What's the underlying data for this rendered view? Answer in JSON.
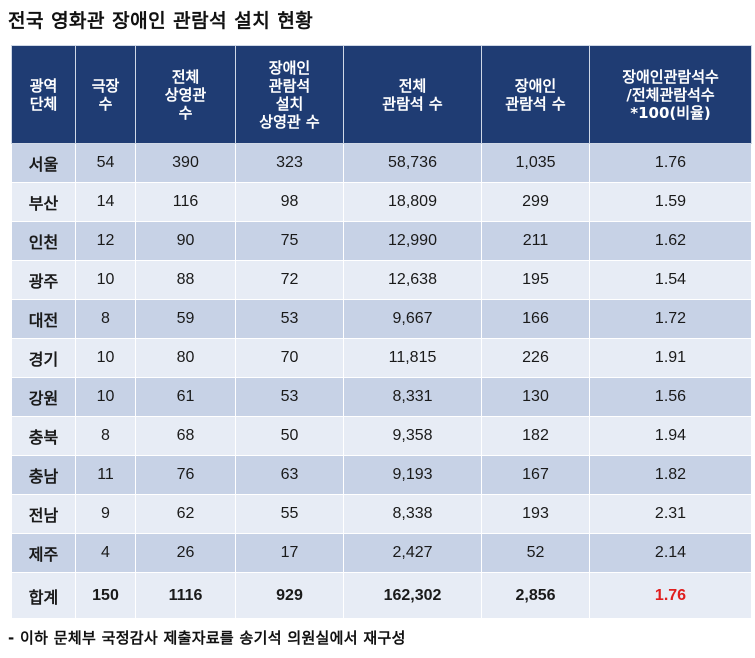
{
  "title": "전국 영화관 장애인 관람석 설치 현황",
  "headers": [
    "광역\n단체",
    "극장\n수",
    "전체\n상영관\n수",
    "장애인\n관람석\n설치\n상영관 수",
    "전체\n관람석 수",
    "장애인\n관람석 수",
    "장애인관람석수\n/전체관람석수\n*100(비율)"
  ],
  "rows": [
    [
      "서울",
      "54",
      "390",
      "323",
      "58,736",
      "1,035",
      "1.76"
    ],
    [
      "부산",
      "14",
      "116",
      "98",
      "18,809",
      "299",
      "1.59"
    ],
    [
      "인천",
      "12",
      "90",
      "75",
      "12,990",
      "211",
      "1.62"
    ],
    [
      "광주",
      "10",
      "88",
      "72",
      "12,638",
      "195",
      "1.54"
    ],
    [
      "대전",
      "8",
      "59",
      "53",
      "9,667",
      "166",
      "1.72"
    ],
    [
      "경기",
      "10",
      "80",
      "70",
      "11,815",
      "226",
      "1.91"
    ],
    [
      "강원",
      "10",
      "61",
      "53",
      "8,331",
      "130",
      "1.56"
    ],
    [
      "충북",
      "8",
      "68",
      "50",
      "9,358",
      "182",
      "1.94"
    ],
    [
      "충남",
      "11",
      "76",
      "63",
      "9,193",
      "167",
      "1.82"
    ],
    [
      "전남",
      "9",
      "62",
      "55",
      "8,338",
      "193",
      "2.31"
    ],
    [
      "제주",
      "4",
      "26",
      "17",
      "2,427",
      "52",
      "2.14"
    ]
  ],
  "total": [
    "합계",
    "150",
    "1116",
    "929",
    "162,302",
    "2,856",
    "1.76"
  ],
  "footnote": "- 이하 문체부 국정감사 제출자료를 송기석 의원실에서 재구성",
  "colors": {
    "header_bg": "#1f3c73",
    "row_dark": "#c7d2e6",
    "row_light": "#e7ecf5",
    "highlight": "#e01e1e"
  }
}
